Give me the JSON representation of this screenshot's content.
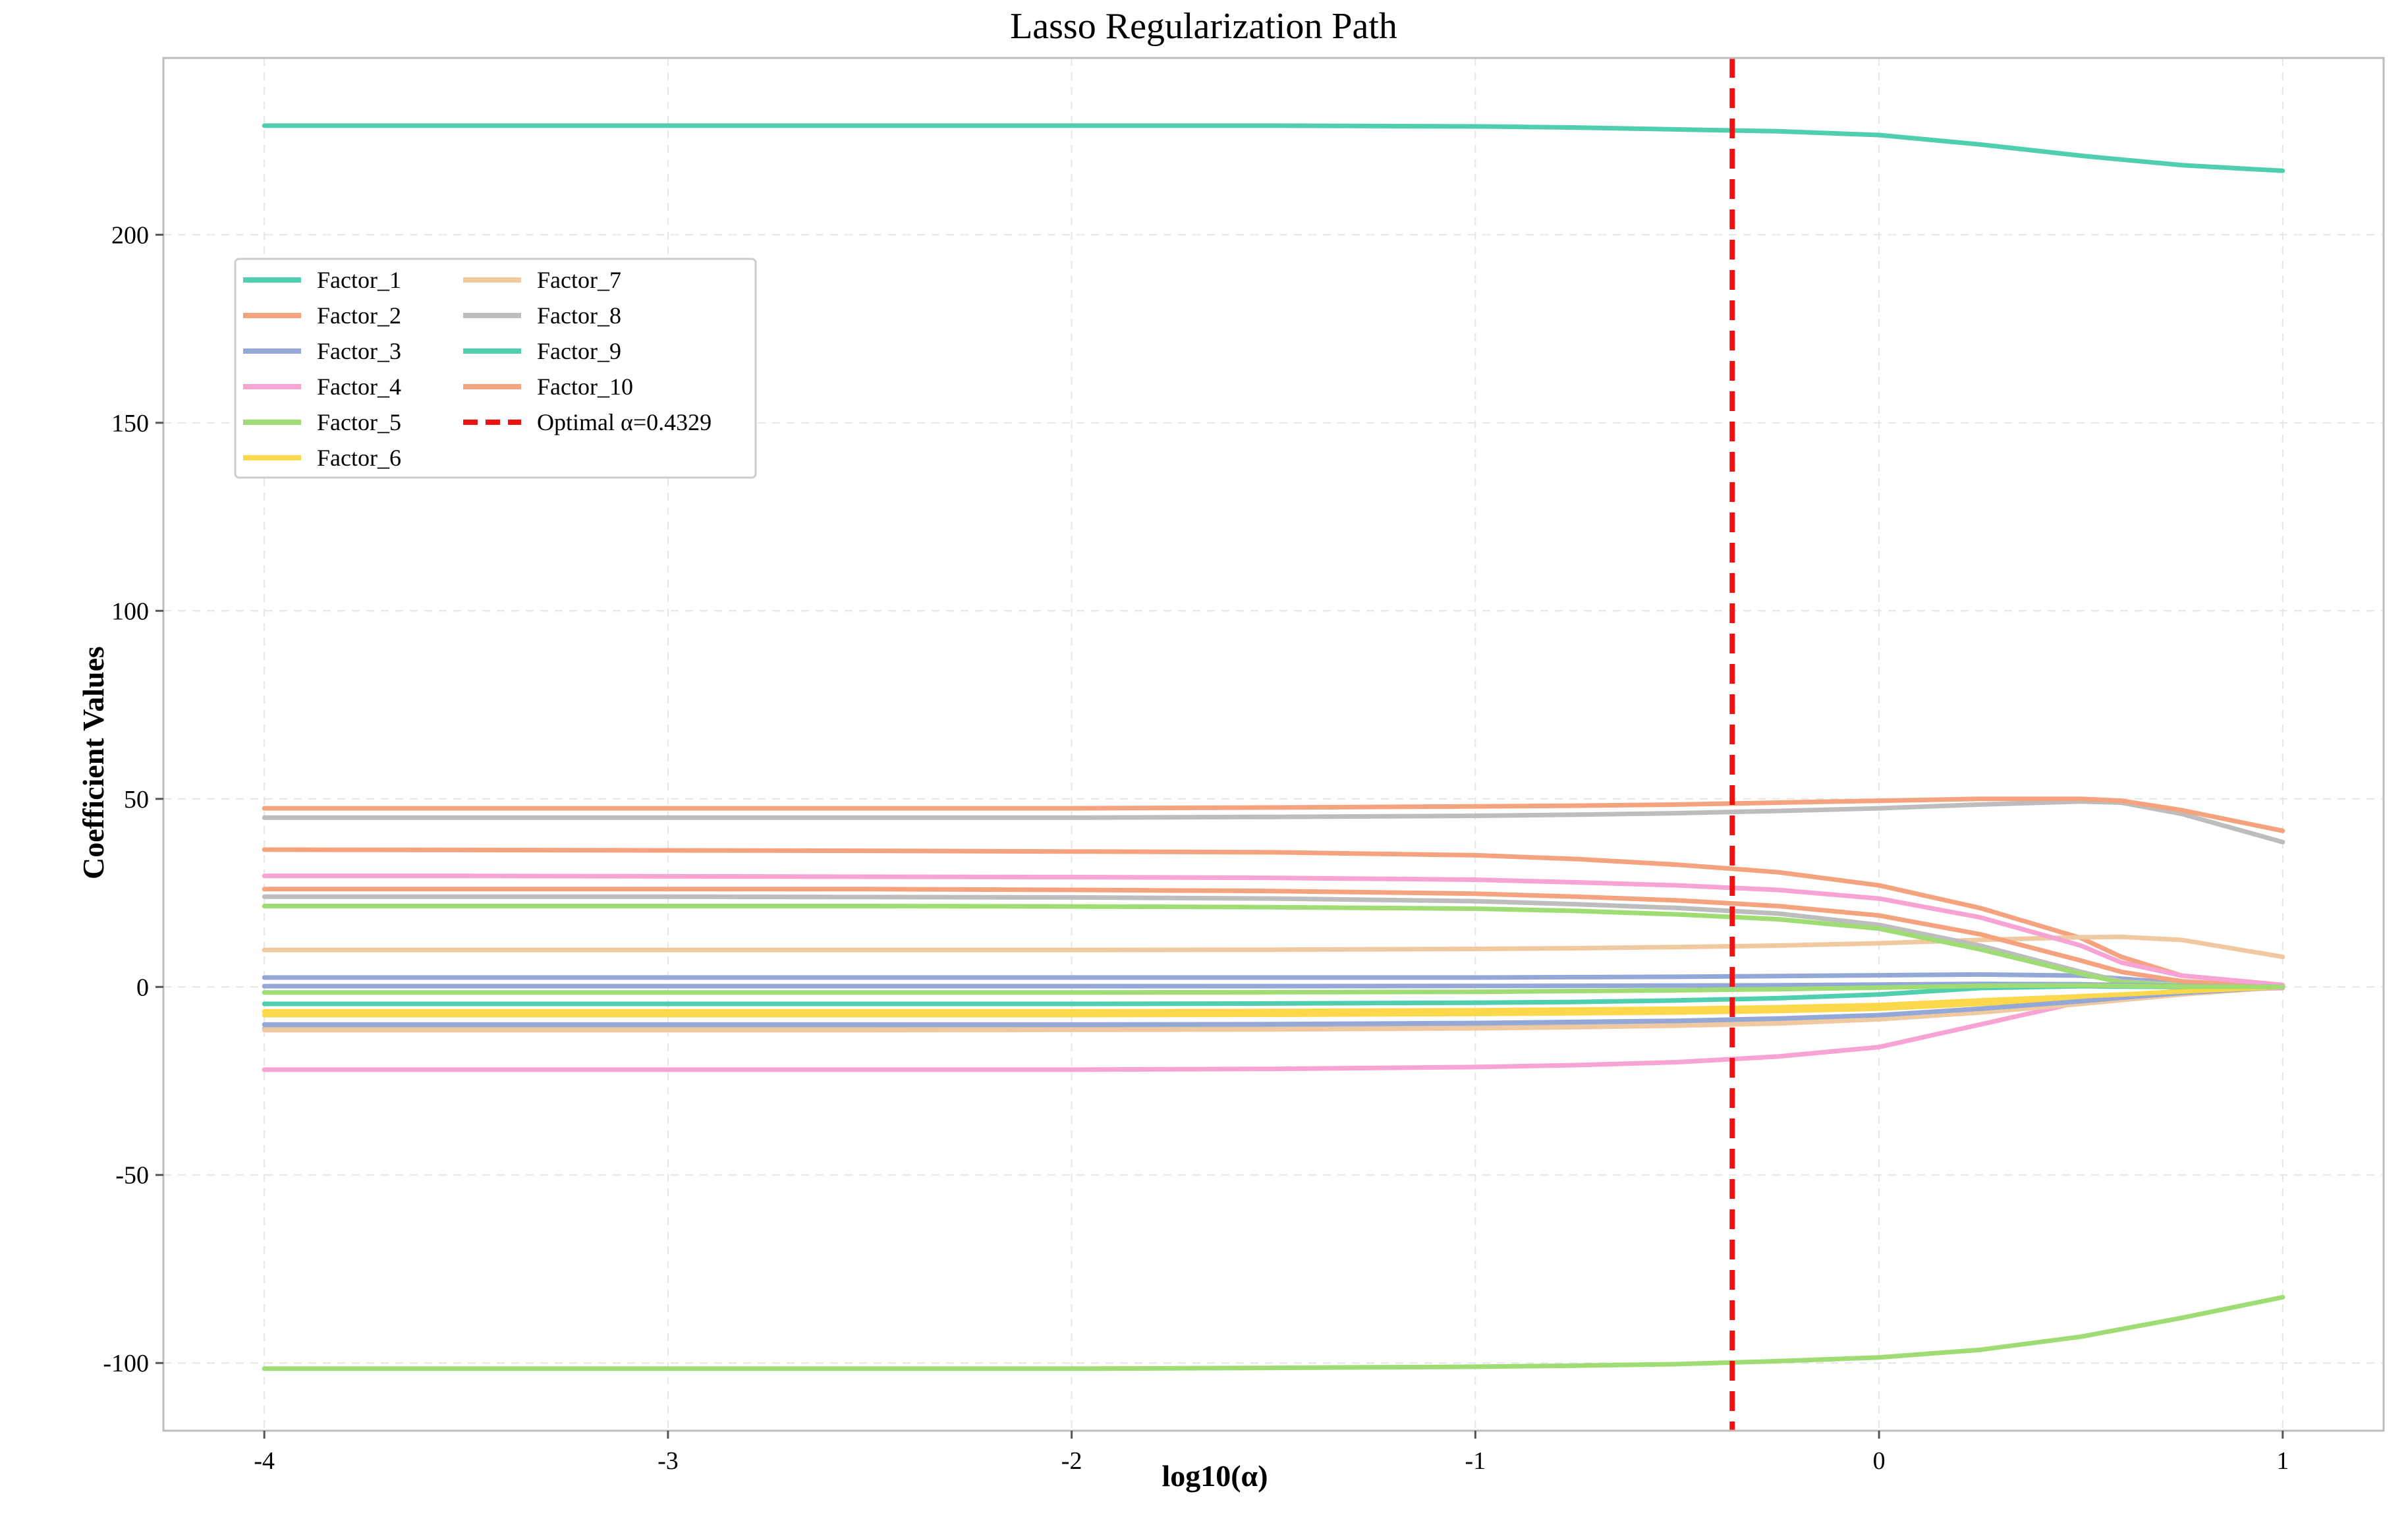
{
  "chart_data": {
    "type": "line",
    "title": "Lasso Regularization Path",
    "xlabel": "log10(α)",
    "ylabel": "Coefficient Values",
    "xlim": [
      -4.25,
      1.25
    ],
    "ylim": [
      -118,
      247
    ],
    "x_ticks": [
      -4,
      -3,
      -2,
      -1,
      0,
      1
    ],
    "y_ticks": [
      -100,
      -50,
      0,
      50,
      100,
      150,
      200
    ],
    "grid": true,
    "legend_position": "upper-left",
    "legend_columns": 2,
    "x": [
      -4,
      -3.5,
      -3,
      -2.5,
      -2,
      -1.5,
      -1,
      -0.75,
      -0.5,
      -0.25,
      0,
      0.25,
      0.5,
      0.6,
      0.75,
      1
    ],
    "series": [
      {
        "name": "Factor_1",
        "color": "#4fcfae",
        "values": [
          229,
          229,
          229,
          229,
          229,
          229,
          228.8,
          228.5,
          228,
          227.5,
          226.5,
          224,
          221,
          220,
          218.5,
          217
        ]
      },
      {
        "name": "Factor_2",
        "color": "#f5a37f",
        "values": [
          36.5,
          36.4,
          36.3,
          36.2,
          36,
          35.8,
          35,
          34,
          32.5,
          30.5,
          27,
          21,
          13,
          8,
          3,
          0.5
        ]
      },
      {
        "name": "Factor_3",
        "color": "#93a8d6",
        "values": [
          2.5,
          2.5,
          2.5,
          2.5,
          2.5,
          2.5,
          2.5,
          2.6,
          2.7,
          2.9,
          3.1,
          3.3,
          3.0,
          2.2,
          1,
          0.2
        ]
      },
      {
        "name": "Factor_4",
        "color": "#f7a3d4",
        "values": [
          -22,
          -22,
          -22,
          -22,
          -22,
          -21.8,
          -21.3,
          -20.8,
          -20,
          -18.5,
          -16,
          -10,
          -4,
          -2.5,
          -1,
          -0.3
        ]
      },
      {
        "name": "Factor_5",
        "color": "#9fdc73",
        "values": [
          -101.5,
          -101.5,
          -101.5,
          -101.5,
          -101.5,
          -101.3,
          -101,
          -100.7,
          -100.3,
          -99.5,
          -98.5,
          -96.5,
          -93,
          -91,
          -88,
          -82.5
        ]
      },
      {
        "name": "Factor_6",
        "color": "#fcd84a",
        "values": [
          -7.5,
          -7.5,
          -7.5,
          -7.5,
          -7.5,
          -7.4,
          -7.2,
          -7,
          -6.8,
          -6.4,
          -5.8,
          -4.5,
          -3,
          -2.5,
          -1.5,
          0
        ]
      },
      {
        "name": "Factor_7",
        "color": "#f0c9a0",
        "values": [
          9.8,
          9.8,
          9.8,
          9.8,
          9.8,
          9.9,
          10.1,
          10.3,
          10.6,
          11,
          11.6,
          12.5,
          13.2,
          13.3,
          12.5,
          8
        ]
      },
      {
        "name": "Factor_8",
        "color": "#bdbdbd",
        "values": [
          45,
          45,
          45,
          45,
          45,
          45.2,
          45.5,
          45.8,
          46.2,
          46.8,
          47.5,
          48.5,
          49.3,
          49,
          46,
          38.5
        ]
      },
      {
        "name": "Factor_9",
        "color": "#4fcfae",
        "values": [
          -4.5,
          -4.5,
          -4.5,
          -4.5,
          -4.5,
          -4.4,
          -4.2,
          -4,
          -3.6,
          -3,
          -2,
          -0.3,
          0.2,
          0.1,
          0,
          0
        ]
      },
      {
        "name": "Factor_10",
        "color": "#f5a37f",
        "values": [
          47.5,
          47.5,
          47.5,
          47.5,
          47.5,
          47.7,
          48,
          48.2,
          48.5,
          49,
          49.5,
          50,
          50,
          49.5,
          47,
          41.5
        ]
      },
      {
        "name": "",
        "color": "#bdbdbd",
        "values": [
          24,
          24,
          24,
          23.9,
          23.8,
          23.5,
          22.8,
          22,
          21,
          19.5,
          16.5,
          11,
          4,
          1.5,
          0.5,
          0
        ]
      },
      {
        "name": "",
        "color": "#9fdc73",
        "values": [
          21.5,
          21.5,
          21.5,
          21.5,
          21.4,
          21.2,
          20.8,
          20.2,
          19.3,
          18,
          15.5,
          10,
          3.5,
          1.2,
          0.4,
          0
        ]
      },
      {
        "name": "",
        "color": "#f5a37f",
        "values": [
          26,
          26,
          26,
          26,
          25.8,
          25.5,
          24.8,
          24,
          23,
          21.5,
          19,
          14,
          7,
          4,
          1.5,
          0
        ]
      },
      {
        "name": "",
        "color": "#f7a3d4",
        "values": [
          29.5,
          29.5,
          29.4,
          29.3,
          29.2,
          29,
          28.5,
          27.8,
          27,
          25.8,
          23.5,
          18.5,
          11,
          6.5,
          3,
          0.5
        ]
      },
      {
        "name": "",
        "color": "#bdbdbd",
        "values": [
          -11,
          -11,
          -11,
          -11,
          -11,
          -10.8,
          -10.5,
          -10.2,
          -9.8,
          -9.2,
          -8.3,
          -6.5,
          -4.3,
          -3.3,
          -1.8,
          0
        ]
      },
      {
        "name": "",
        "color": "#f0c9a0",
        "values": [
          -11.5,
          -11.5,
          -11.5,
          -11.5,
          -11.4,
          -11.3,
          -11,
          -10.7,
          -10.3,
          -9.7,
          -8.6,
          -6.8,
          -4.5,
          -3.5,
          -2,
          0
        ]
      },
      {
        "name": "",
        "color": "#93a8d6",
        "values": [
          -10,
          -10,
          -10,
          -10,
          -10,
          -9.9,
          -9.6,
          -9.3,
          -9,
          -8.4,
          -7.5,
          -5.8,
          -3.8,
          -2.9,
          -1.6,
          0
        ]
      },
      {
        "name": "",
        "color": "#fcd84a",
        "values": [
          -6.5,
          -6.5,
          -6.5,
          -6.5,
          -6.5,
          -6.4,
          -6.2,
          -6,
          -5.8,
          -5.4,
          -4.8,
          -3.6,
          -2.5,
          -2,
          -1.2,
          0
        ]
      },
      {
        "name": "",
        "color": "#93a8d6",
        "values": [
          0.2,
          0.2,
          0.2,
          0.2,
          0.2,
          0.2,
          0.25,
          0.3,
          0.35,
          0.45,
          0.6,
          0.8,
          0.7,
          0.5,
          0.2,
          0
        ]
      },
      {
        "name": "",
        "color": "#9fdc73",
        "values": [
          -1.5,
          -1.5,
          -1.5,
          -1.5,
          -1.5,
          -1.4,
          -1.3,
          -1.1,
          -0.9,
          -0.6,
          -0.2,
          0.3,
          0.4,
          0.3,
          0.1,
          0
        ]
      }
    ],
    "optimal_line": {
      "label": "Optimal α=0.4329",
      "x": -0.3636,
      "color": "#ee1111"
    }
  }
}
